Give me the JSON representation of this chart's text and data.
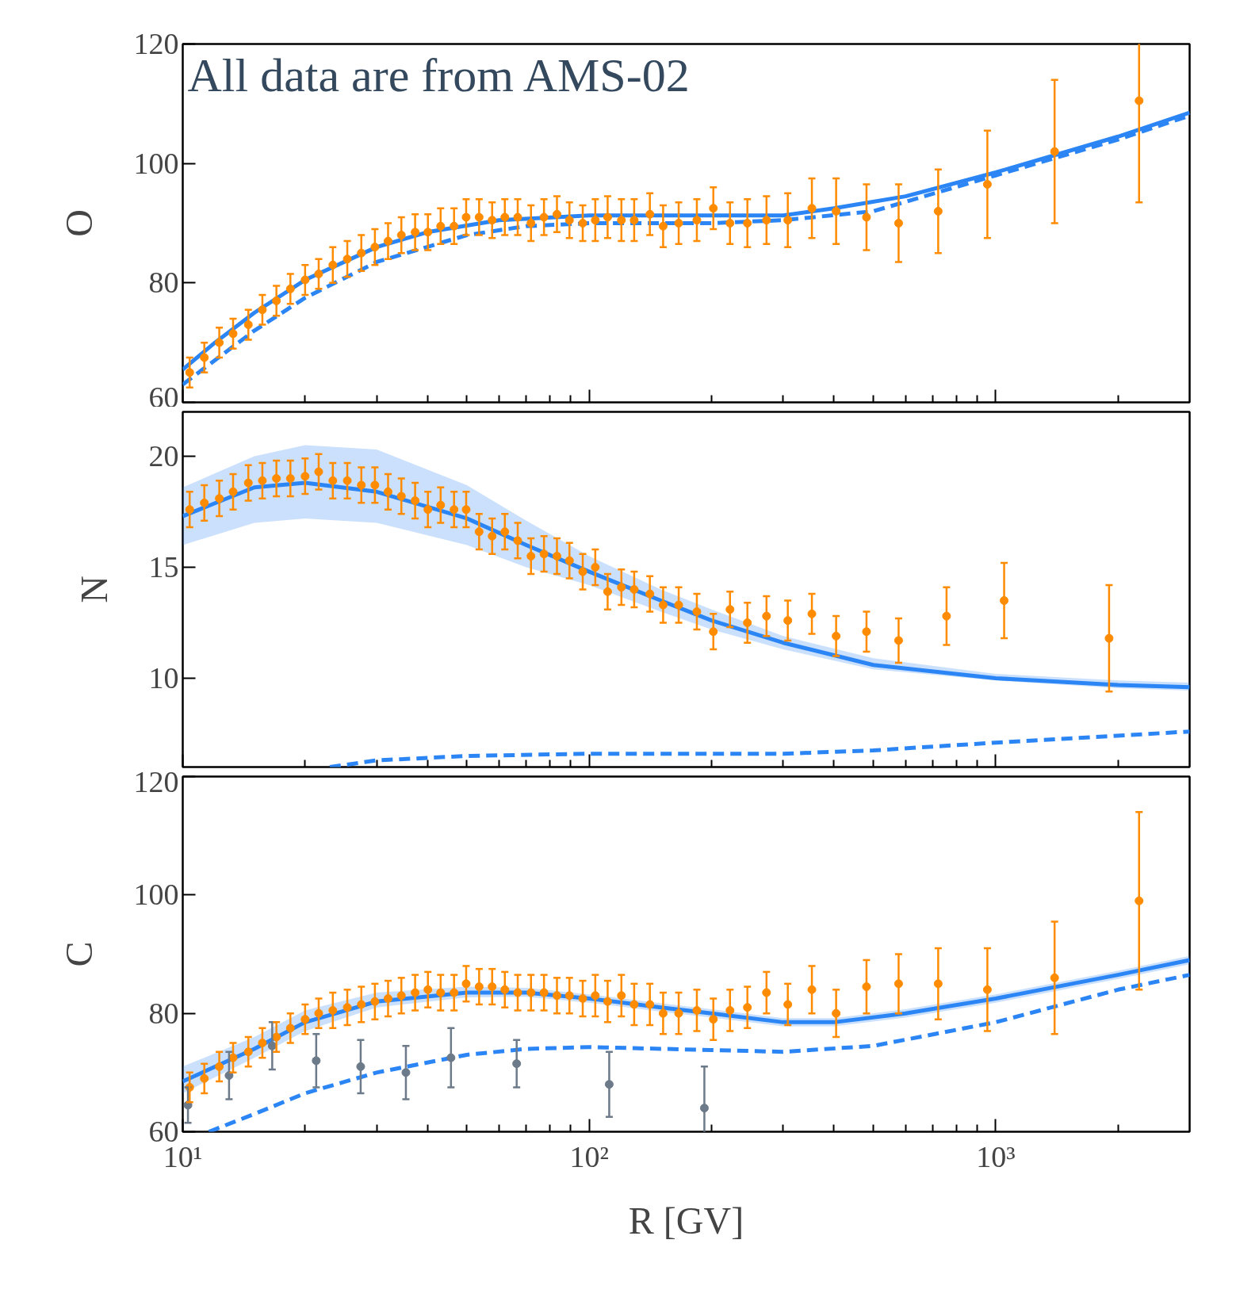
{
  "chart_data": [
    {
      "type": "scatter",
      "ylabel": "O",
      "log": "x",
      "xlim": [
        10,
        3000
      ],
      "ylim": [
        60,
        120
      ],
      "yticks": [
        60,
        80,
        100,
        120
      ],
      "xticks": [
        10,
        100,
        1000
      ],
      "tick_labels": "y",
      "grid": false,
      "annotations": [
        "All data are from AMS-02"
      ],
      "series": [
        {
          "type": "line",
          "color": "#2b85f5",
          "line_style": "dashed",
          "x": [
            10,
            15,
            20,
            30,
            50,
            70,
            100,
            200,
            300,
            500,
            1000,
            2000,
            3000
          ],
          "values": [
            63,
            72,
            77.5,
            83.5,
            88,
            89.5,
            90,
            90,
            90.5,
            92,
            98,
            104,
            108
          ]
        },
        {
          "type": "line",
          "color": "#2b85f5",
          "line_style": "solid",
          "x": [
            10,
            12,
            15,
            20,
            30,
            40,
            60,
            100,
            200,
            300,
            400,
            600,
            1000,
            2000,
            3000
          ],
          "values": [
            65.5,
            70,
            75,
            80.5,
            86,
            88.5,
            90.5,
            91.3,
            91.3,
            91.3,
            92.5,
            94.5,
            98.5,
            104.5,
            108.5
          ]
        },
        {
          "marker": "circle",
          "color": "#ff8c00",
          "x": [
            10.4,
            11.3,
            12.3,
            13.3,
            14.5,
            15.7,
            17.0,
            18.4,
            20.0,
            21.6,
            23.4,
            25.4,
            27.5,
            29.7,
            32.0,
            34.5,
            37.3,
            40.1,
            43.1,
            46.5,
            49.8,
            53.6,
            57.7,
            62.0,
            66.7,
            71.9,
            77.4,
            83.3,
            89.4,
            96.4,
            103.5,
            111,
            120,
            129,
            141,
            152,
            166,
            184,
            202,
            222,
            245,
            273,
            308,
            353,
            405,
            481,
            577,
            722,
            954,
            1396,
            2253
          ],
          "values": [
            65,
            67.5,
            70,
            71.5,
            73,
            75.5,
            77,
            79,
            80.5,
            81.5,
            83,
            84,
            85,
            86,
            87,
            88,
            88.5,
            88.5,
            89.5,
            89.5,
            91,
            91,
            90.5,
            91,
            91,
            90,
            91,
            91.5,
            90.5,
            90,
            90.5,
            91,
            90.5,
            90.5,
            91.5,
            89.5,
            90,
            90.5,
            92.5,
            90,
            90,
            90.5,
            90.5,
            92.5,
            92,
            91,
            90,
            92,
            96.5,
            102,
            110.5
          ],
          "errors": [
            2.5,
            2.5,
            2.5,
            2.5,
            2.5,
            2.5,
            2.5,
            2.5,
            2.5,
            2.5,
            3,
            3,
            3,
            3,
            3,
            3,
            3,
            3,
            3,
            3,
            3,
            3,
            3,
            3,
            3,
            3,
            3,
            3,
            3,
            3,
            3.5,
            3.5,
            3.5,
            3.5,
            3.5,
            3.5,
            3.5,
            3.5,
            3.5,
            3.5,
            4,
            4,
            4.5,
            5,
            5.5,
            5.5,
            6.5,
            7,
            9,
            12,
            17
          ]
        }
      ]
    },
    {
      "type": "scatter",
      "ylabel": "N",
      "log": "x",
      "xlim": [
        10,
        3000
      ],
      "ylim": [
        6,
        22
      ],
      "yticks": [
        10,
        15,
        20
      ],
      "xticks": [
        10,
        100,
        1000
      ],
      "tick_labels": "y",
      "grid": false,
      "series": [
        {
          "type": "line",
          "color": "#2b85f5",
          "line_style": "dashed",
          "x": [
            23,
            30,
            50,
            100,
            300,
            500,
            1000,
            3000
          ],
          "values": [
            6.0,
            6.3,
            6.5,
            6.6,
            6.6,
            6.75,
            7.1,
            7.6
          ]
        },
        {
          "type": "line",
          "color": "#2b85f5",
          "line_style": "solid",
          "x": [
            10,
            15,
            20,
            30,
            50,
            70,
            100,
            150,
            200,
            300,
            500,
            1000,
            2000,
            3000
          ],
          "values": [
            17.3,
            18.6,
            18.8,
            18.4,
            17.2,
            16.0,
            14.8,
            13.5,
            12.6,
            11.6,
            10.6,
            10.0,
            9.7,
            9.6
          ],
          "lower": [
            16.0,
            17.0,
            17.2,
            17.0,
            16.0,
            15.0,
            14.2,
            13.0,
            12.2,
            11.3,
            10.4,
            9.9,
            9.55,
            9.45
          ],
          "upper": [
            18.6,
            20.0,
            20.5,
            20.3,
            18.7,
            17.1,
            15.5,
            14.0,
            13.1,
            11.9,
            10.9,
            10.2,
            9.9,
            9.8
          ]
        },
        {
          "marker": "circle",
          "color": "#ff8c00",
          "x": [
            10.4,
            11.3,
            12.3,
            13.3,
            14.5,
            15.7,
            17.0,
            18.4,
            20.0,
            21.6,
            23.4,
            25.4,
            27.5,
            29.7,
            32.0,
            34.5,
            37.3,
            40.1,
            43.1,
            46.5,
            49.8,
            53.6,
            57.7,
            62.0,
            66.7,
            71.9,
            77.4,
            83.3,
            89.4,
            96.4,
            103.5,
            111,
            120,
            129,
            141,
            152,
            166,
            184,
            202,
            222,
            245,
            273,
            308,
            353,
            405,
            481,
            577,
            757,
            1049,
            1901
          ],
          "values": [
            17.6,
            17.9,
            18.1,
            18.4,
            18.8,
            18.9,
            19.0,
            19.0,
            19.1,
            19.3,
            18.9,
            18.9,
            18.7,
            18.7,
            18.4,
            18.2,
            18.0,
            17.6,
            17.8,
            17.6,
            17.6,
            16.6,
            16.4,
            16.6,
            16.2,
            15.5,
            15.6,
            15.5,
            15.3,
            14.8,
            15.0,
            13.9,
            14.1,
            14.0,
            13.8,
            13.3,
            13.3,
            13.0,
            12.1,
            13.1,
            12.5,
            12.8,
            12.6,
            12.9,
            11.9,
            12.1,
            11.7,
            12.8,
            13.5,
            11.8
          ],
          "errors": [
            0.8,
            0.8,
            0.8,
            0.8,
            0.8,
            0.8,
            0.8,
            0.8,
            0.8,
            0.8,
            0.8,
            0.8,
            0.8,
            0.8,
            0.8,
            0.8,
            0.8,
            0.8,
            0.8,
            0.8,
            0.8,
            0.8,
            0.8,
            0.8,
            0.8,
            0.8,
            0.8,
            0.8,
            0.8,
            0.8,
            0.8,
            0.8,
            0.8,
            0.8,
            0.8,
            0.8,
            0.8,
            0.8,
            0.8,
            0.8,
            0.9,
            0.9,
            0.9,
            0.9,
            0.9,
            0.9,
            1.0,
            1.3,
            1.7,
            2.4
          ]
        }
      ]
    },
    {
      "type": "scatter",
      "ylabel": "C",
      "xlabel": "R [GV]",
      "log": "x",
      "xlim": [
        10,
        3000
      ],
      "ylim": [
        60,
        120
      ],
      "yticks": [
        60,
        80,
        100,
        120
      ],
      "xticks": [
        {
          "value": 10,
          "label": "10¹"
        },
        {
          "value": 100,
          "label": "10²"
        },
        {
          "value": 1000,
          "label": "10³"
        }
      ],
      "grid": false,
      "series": [
        {
          "type": "line",
          "color": "#2b85f5",
          "line_style": "dashed",
          "x": [
            11.6,
            15,
            20,
            30,
            50,
            70,
            100,
            200,
            300,
            500,
            1000,
            2000,
            3000
          ],
          "values": [
            60,
            63,
            66.5,
            70,
            73,
            74,
            74.3,
            73.8,
            73.5,
            74.5,
            78.5,
            84,
            86.5
          ]
        },
        {
          "type": "line",
          "color": "#2b85f5",
          "line_style": "solid",
          "x": [
            10,
            15,
            20,
            30,
            50,
            70,
            100,
            150,
            200,
            300,
            400,
            600,
            1000,
            2000,
            3000
          ],
          "values": [
            68.5,
            74,
            78.5,
            82,
            83.5,
            83.5,
            82.5,
            81,
            80,
            78.5,
            78.5,
            80,
            82.5,
            86.5,
            89
          ],
          "lower": [
            66.5,
            72.5,
            77,
            81,
            82.7,
            82.8,
            81.8,
            80.3,
            79.3,
            77.8,
            77.8,
            79.3,
            81.8,
            85.8,
            88.3
          ],
          "upper": [
            71,
            76,
            80.5,
            83.5,
            84.5,
            84.3,
            83.2,
            81.7,
            80.7,
            79.2,
            79.2,
            80.7,
            83.2,
            87.2,
            89.7
          ]
        },
        {
          "marker": "circle",
          "color": "#6c7a89",
          "x": [
            10.3,
            13.0,
            16.6,
            21.3,
            27.4,
            35.4,
            45.7,
            66.3,
            112,
            192
          ],
          "values": [
            64.5,
            69.5,
            74.5,
            72,
            71,
            70,
            72.5,
            71.5,
            68,
            64
          ],
          "errors": [
            3,
            4,
            4,
            4.5,
            4.5,
            4.5,
            5,
            4,
            5.5,
            7
          ]
        },
        {
          "marker": "circle",
          "color": "#ff8c00",
          "x": [
            10.4,
            11.3,
            12.3,
            13.3,
            14.5,
            15.7,
            17.0,
            18.4,
            20.0,
            21.6,
            23.4,
            25.4,
            27.5,
            29.7,
            32.0,
            34.5,
            37.3,
            40.1,
            43.1,
            46.5,
            49.8,
            53.6,
            57.7,
            62.0,
            66.7,
            71.9,
            77.4,
            83.3,
            89.4,
            96.4,
            103.5,
            111,
            120,
            129,
            141,
            152,
            166,
            184,
            202,
            222,
            245,
            273,
            308,
            353,
            405,
            481,
            577,
            722,
            954,
            1396,
            2253
          ],
          "values": [
            67.5,
            69,
            71,
            72.5,
            73.5,
            75,
            76,
            77.5,
            79,
            80,
            80.5,
            81,
            81.5,
            82,
            82.5,
            83,
            83.5,
            84,
            83.5,
            83.5,
            85,
            84.5,
            84.5,
            84,
            83.5,
            83.5,
            83.5,
            83,
            83,
            82.5,
            83,
            82,
            83,
            81.5,
            81.5,
            80,
            80,
            80.5,
            79,
            80.5,
            81,
            83.5,
            81.5,
            84,
            80,
            84.5,
            85,
            85,
            84,
            86,
            99
          ],
          "errors": [
            2.5,
            2.5,
            2.5,
            2.5,
            2.5,
            2.5,
            2.5,
            2.5,
            2.5,
            2.5,
            3,
            3,
            3,
            3,
            3,
            3,
            3,
            3,
            3,
            3,
            3,
            3,
            3,
            3,
            3,
            3,
            3,
            3,
            3,
            3,
            3.5,
            3.5,
            3.5,
            3.5,
            3.5,
            3.5,
            3.5,
            3.5,
            3.5,
            3.5,
            3.5,
            3.5,
            3.5,
            4,
            4,
            4.5,
            5,
            6,
            7,
            9.5,
            15
          ]
        }
      ]
    }
  ]
}
